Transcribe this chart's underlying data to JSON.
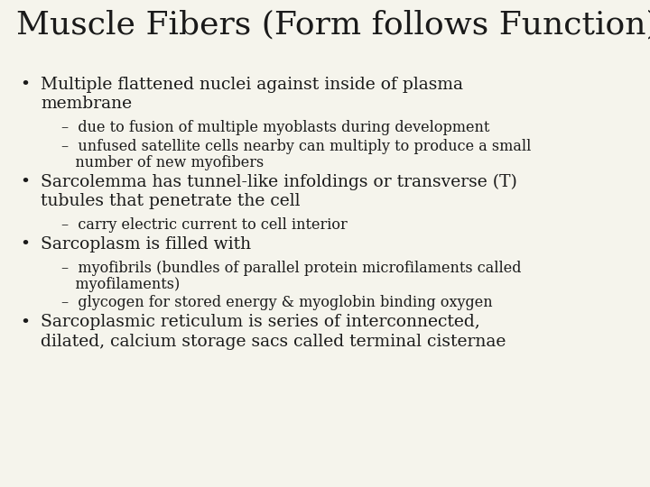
{
  "title": "Muscle Fibers (Form follows Function)",
  "background_color": "#f5f4ec",
  "title_fontsize": 26,
  "body_fontsize": 13.5,
  "sub_fontsize": 11.5,
  "text_color": "#1a1a1a",
  "items": [
    {
      "level": 1,
      "lines": [
        "Multiple flattened nuclei against inside of plasma",
        "membrane"
      ]
    },
    {
      "level": 2,
      "lines": [
        "–  due to fusion of multiple myoblasts during development"
      ]
    },
    {
      "level": 2,
      "lines": [
        "–  unfused satellite cells nearby can multiply to produce a small",
        "   number of new myofibers"
      ]
    },
    {
      "level": 1,
      "lines": [
        "Sarcolemma has tunnel-like infoldings or transverse (T)",
        "tubules that penetrate the cell"
      ]
    },
    {
      "level": 2,
      "lines": [
        "–  carry electric current to cell interior"
      ]
    },
    {
      "level": 1,
      "lines": [
        "Sarcoplasm is filled with"
      ]
    },
    {
      "level": 2,
      "lines": [
        "–  myofibrils (bundles of parallel protein microfilaments called",
        "   myofilaments)"
      ]
    },
    {
      "level": 2,
      "lines": [
        "–  glycogen for stored energy & myoglobin binding oxygen"
      ]
    },
    {
      "level": 1,
      "lines": [
        "Sarcoplasmic reticulum is series of interconnected,",
        "dilated, calcium storage sacs called terminal cisternae"
      ]
    }
  ]
}
